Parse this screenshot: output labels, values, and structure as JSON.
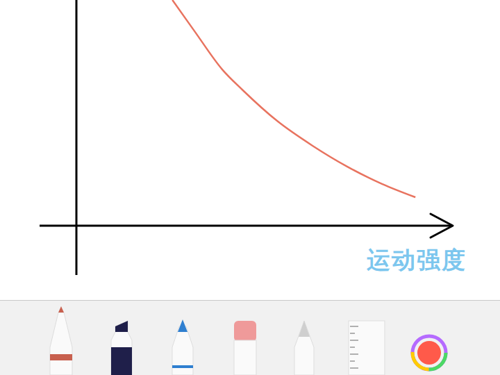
{
  "chart_data": {
    "type": "line",
    "x_label": "运动强度",
    "x": [
      25.6,
      31.5,
      38.9,
      44.4,
      53.7,
      63,
      72.2,
      81.5,
      90.4
    ],
    "values": [
      100,
      86.2,
      69.2,
      60,
      46.2,
      35.4,
      26.2,
      18.5,
      12.6
    ],
    "xlim": [
      0,
      100
    ],
    "ylim": [
      0,
      100
    ],
    "color": "#e8735f",
    "tick_labels": false,
    "grid": false
  }
}
